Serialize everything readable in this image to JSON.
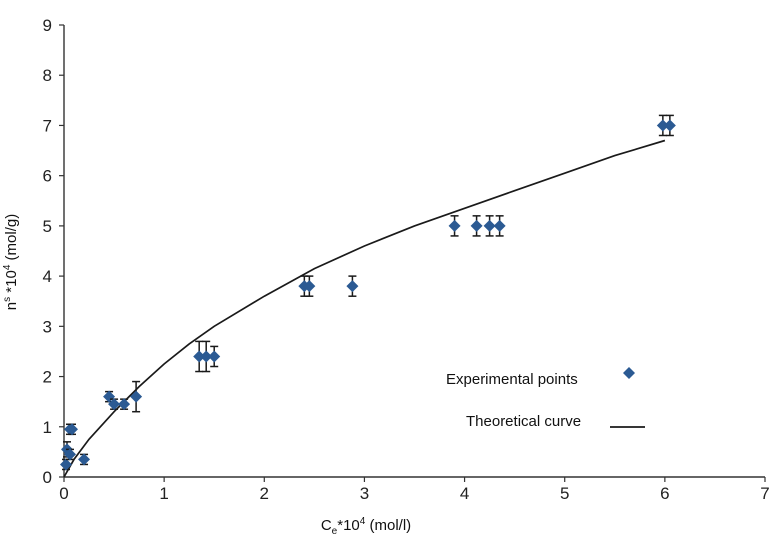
{
  "chart_data": {
    "type": "scatter",
    "title": "",
    "xlabel_base": "C",
    "xlabel_sub": "e",
    "xlabel_mid": "*10",
    "xlabel_sup": "4",
    "xlabel_tail": " (mol/l)",
    "ylabel_base": "n",
    "ylabel_sup1": "s",
    "ylabel_mid": " *10",
    "ylabel_sup2": "4",
    "ylabel_tail": " (mol/g)",
    "xlim": [
      0,
      7
    ],
    "ylim": [
      0,
      9
    ],
    "xticks": [
      0,
      1,
      2,
      3,
      4,
      5,
      6,
      7
    ],
    "yticks": [
      0,
      1,
      2,
      3,
      4,
      5,
      6,
      7,
      8,
      9
    ],
    "grid": false,
    "legend_position": "lower-right",
    "series": [
      {
        "name": "Experimental points",
        "kind": "scatter",
        "marker": "diamond",
        "color": "#2b5a93",
        "points": [
          {
            "x": 0.02,
            "y": 0.25,
            "err": 0.1
          },
          {
            "x": 0.03,
            "y": 0.55,
            "err": 0.15
          },
          {
            "x": 0.06,
            "y": 0.45,
            "err": 0.1
          },
          {
            "x": 0.06,
            "y": 0.95,
            "err": 0.1
          },
          {
            "x": 0.08,
            "y": 0.95,
            "err": 0.1
          },
          {
            "x": 0.2,
            "y": 0.35,
            "err": 0.1
          },
          {
            "x": 0.45,
            "y": 1.6,
            "err": 0.1
          },
          {
            "x": 0.5,
            "y": 1.45,
            "err": 0.1
          },
          {
            "x": 0.6,
            "y": 1.45,
            "err": 0.1
          },
          {
            "x": 0.72,
            "y": 1.6,
            "err": 0.3
          },
          {
            "x": 1.35,
            "y": 2.4,
            "err": 0.3
          },
          {
            "x": 1.42,
            "y": 2.4,
            "err": 0.3
          },
          {
            "x": 1.5,
            "y": 2.4,
            "err": 0.2
          },
          {
            "x": 2.4,
            "y": 3.8,
            "err": 0.2
          },
          {
            "x": 2.45,
            "y": 3.8,
            "err": 0.2
          },
          {
            "x": 2.88,
            "y": 3.8,
            "err": 0.2
          },
          {
            "x": 3.9,
            "y": 5.0,
            "err": 0.2
          },
          {
            "x": 4.12,
            "y": 5.0,
            "err": 0.2
          },
          {
            "x": 4.25,
            "y": 5.0,
            "err": 0.2
          },
          {
            "x": 4.35,
            "y": 5.0,
            "err": 0.2
          },
          {
            "x": 5.98,
            "y": 7.0,
            "err": 0.2
          },
          {
            "x": 6.05,
            "y": 7.0,
            "err": 0.2
          }
        ]
      },
      {
        "name": "Theoretical curve",
        "kind": "line",
        "color": "#1a1a1a",
        "x": [
          0.0,
          0.1,
          0.25,
          0.5,
          0.75,
          1.0,
          1.25,
          1.5,
          2.0,
          2.5,
          3.0,
          3.5,
          4.0,
          4.5,
          5.0,
          5.5,
          6.0
        ],
        "y": [
          0.0,
          0.35,
          0.75,
          1.3,
          1.8,
          2.25,
          2.65,
          3.0,
          3.6,
          4.15,
          4.6,
          5.0,
          5.35,
          5.7,
          6.05,
          6.4,
          6.7
        ]
      }
    ]
  }
}
